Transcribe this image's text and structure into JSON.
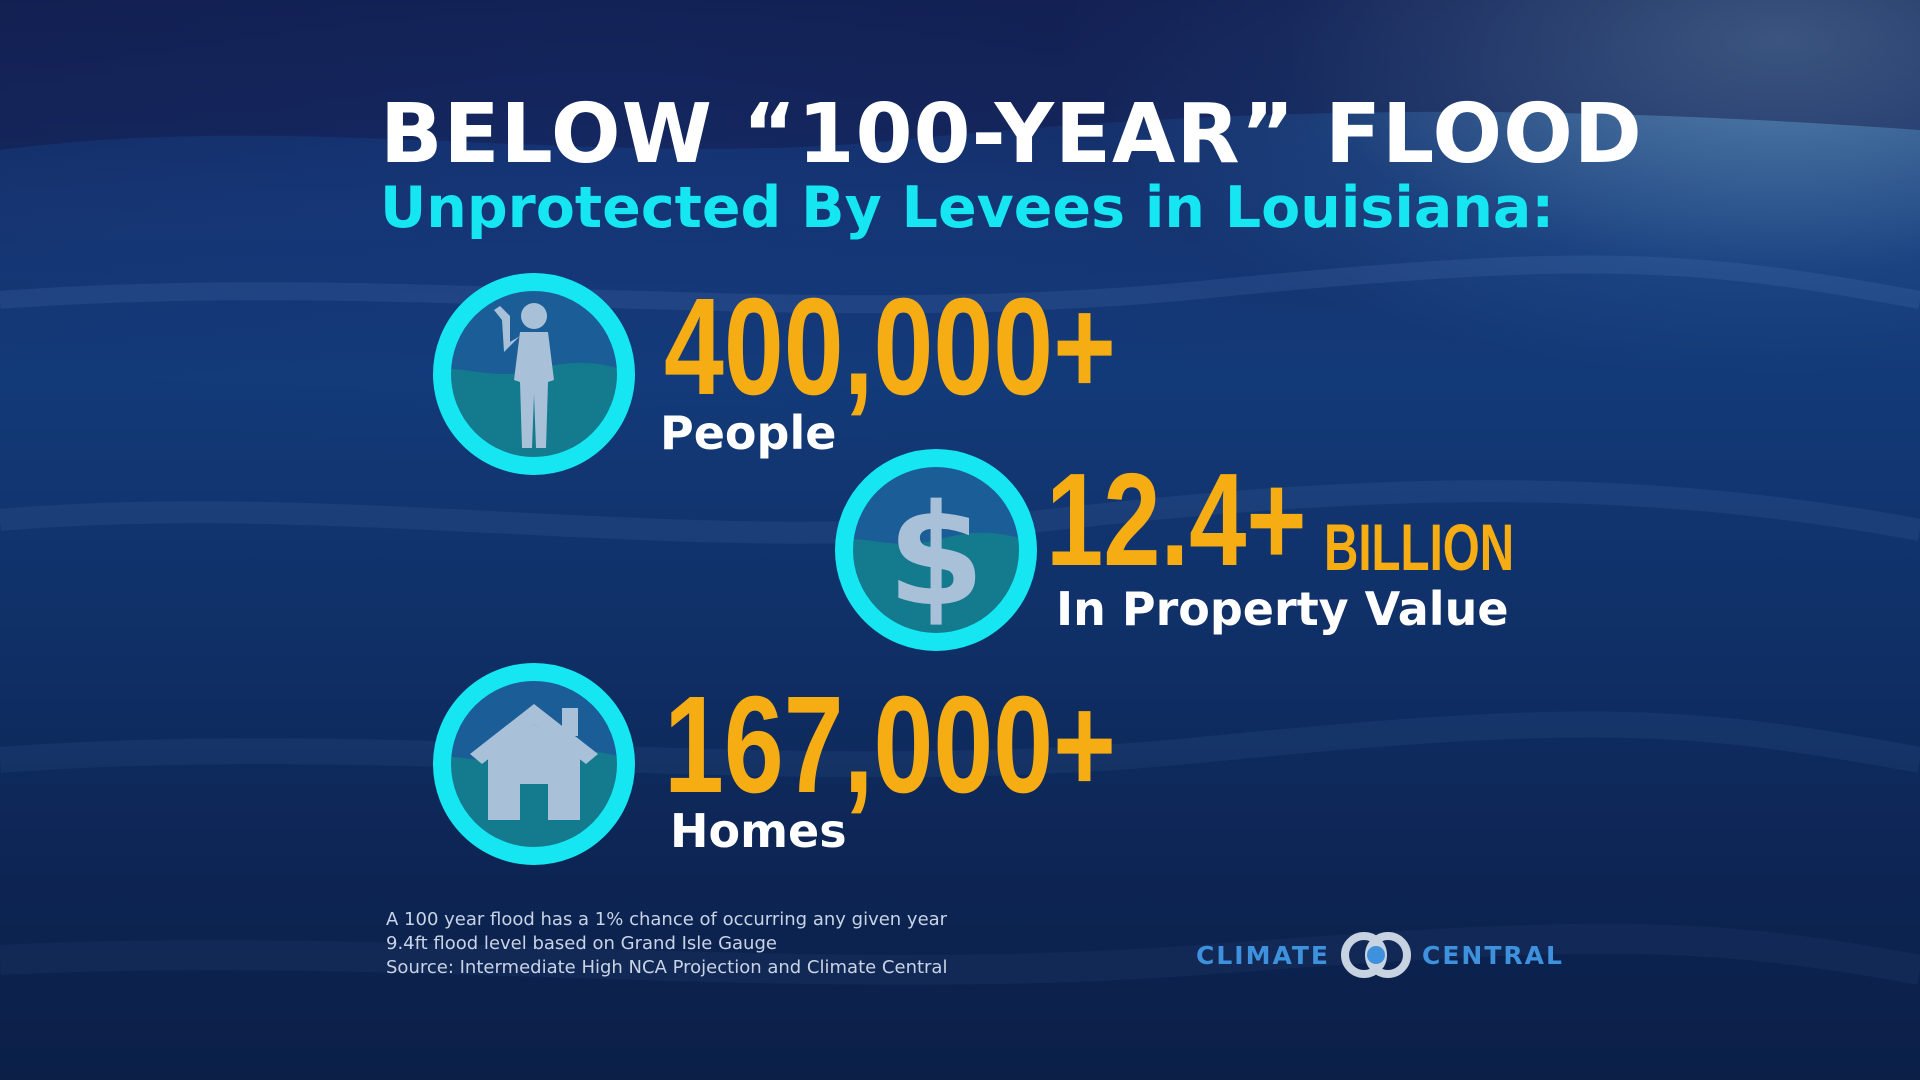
{
  "title": "BELOW “100-YEAR” FLOOD",
  "subtitle": "Unprotected By Levees in Louisiana:",
  "stats": [
    {
      "value": "400,000+",
      "label": "People",
      "icon": "person-in-water-icon"
    },
    {
      "value": "12.4+",
      "unit": "BILLION",
      "label": "In Property Value",
      "icon": "dollar-in-water-icon"
    },
    {
      "value": "167,000+",
      "label": "Homes",
      "icon": "house-in-water-icon"
    }
  ],
  "notes": [
    "A 100 year flood has a 1% chance of occurring any given year",
    "9.4ft flood level based on Grand Isle Gauge",
    "Source: Intermediate High NCA Projection and Climate Central"
  ],
  "logo": {
    "left": "CLIMATE",
    "right": "CENTRAL"
  },
  "colors": {
    "accent": "#16e6f2",
    "stat": "#f6ad13",
    "logo": "#3e91dd"
  }
}
